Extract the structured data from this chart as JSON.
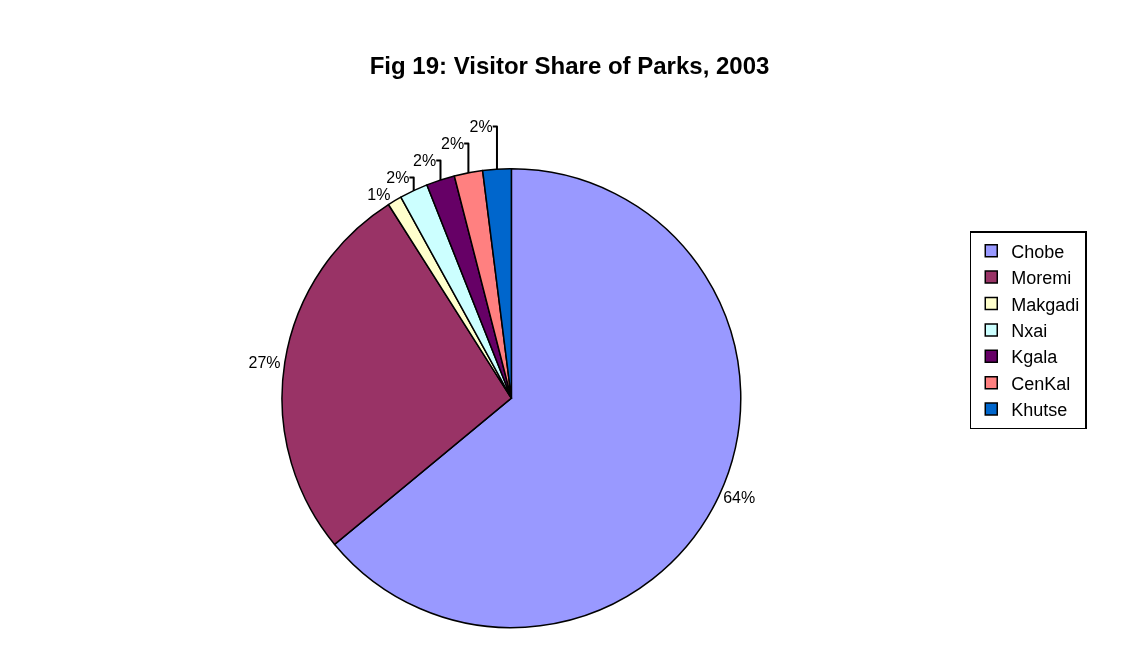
{
  "chart_data": {
    "type": "pie",
    "title": "Fig 19: Visitor Share of Parks, 2003",
    "categories": [
      "Chobe",
      "Moremi",
      "Makgadi",
      "Nxai",
      "Kgala",
      "CenKal",
      "Khutse"
    ],
    "values": [
      64,
      27,
      1,
      2,
      2,
      2,
      2
    ],
    "value_labels": [
      "64%",
      "27%",
      "1%",
      "2%",
      "2%",
      "2%",
      "2%"
    ],
    "colors": [
      "#9999ff",
      "#993366",
      "#ffffcc",
      "#ccffff",
      "#660066",
      "#ff8080",
      "#0066cc"
    ],
    "legend": "right"
  }
}
